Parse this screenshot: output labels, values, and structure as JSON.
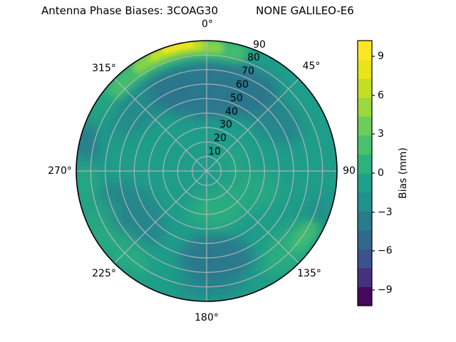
{
  "figure": {
    "title_left": "Antenna Phase Biases: 3COAG30",
    "title_right": "NONE GALILEO-E6",
    "background": "#ffffff"
  },
  "chart_data": {
    "type": "heatmap",
    "subtype": "polar_filled_contour",
    "title": "Antenna Phase Biases: 3COAG30        NONE GALILEO-E6",
    "azimuth_ticks": {
      "degrees": [
        0,
        45,
        90,
        135,
        180,
        225,
        270,
        315
      ],
      "labels": [
        "0°",
        "45°",
        "90",
        "135°",
        "180°",
        "225°",
        "270°",
        "315°"
      ]
    },
    "radial_ticks": {
      "values": [
        10,
        20,
        30,
        40,
        50,
        60,
        70,
        80,
        90
      ],
      "labels": [
        "10",
        "20",
        "30",
        "40",
        "50",
        "60",
        "70",
        "80",
        "90"
      ],
      "range": [
        0,
        90
      ],
      "label_azimuth_deg": 22.5
    },
    "grid": true,
    "colorbar": {
      "label": "Bias (mm)",
      "tick_values": [
        9,
        6,
        3,
        0,
        -3,
        -6,
        -9
      ],
      "tick_labels": [
        "9",
        "6",
        "3",
        "0",
        "−3",
        "−6",
        "−9"
      ],
      "value_range": [
        -10.2,
        10.2
      ],
      "n_bands": 14,
      "colormap": "viridis",
      "band_colors_bottom_to_top": [
        "#46085c",
        "#45327e",
        "#3b528b",
        "#31688e",
        "#287c8e",
        "#21918c",
        "#1fa088",
        "#2db27d",
        "#49c16e",
        "#6ccd5a",
        "#99d83e",
        "#c2df23",
        "#e8e419",
        "#fde725"
      ]
    },
    "palette": {
      "base_teal": "#1f9d8b",
      "negative_blue": "#2e718e",
      "positive_green": "#2fb27c",
      "arc_green": "#4ec36b",
      "arc_yellow_green": "#c8e020",
      "arc_yellow": "#f2e51e",
      "gridline": "#b9b9b9",
      "outline": "#000000"
    },
    "sampled_bias_mm": {
      "note": "values estimated from colormap",
      "azimuth_deg": [
        0,
        45,
        90,
        135,
        180,
        225,
        270,
        315
      ],
      "zenith_deg": [
        15,
        45,
        75
      ],
      "rows_by_zenith": [
        [
          1.0,
          1.0,
          1.5,
          2.0,
          2.5,
          1.5,
          1.0,
          1.0
        ],
        [
          -2.0,
          0.0,
          1.0,
          1.5,
          0.5,
          1.0,
          0.0,
          -0.5
        ],
        [
          5.0,
          -0.5,
          0.5,
          3.5,
          -2.0,
          3.0,
          1.5,
          2.5
        ]
      ]
    },
    "extrema": {
      "max_mm": 9.5,
      "max_at": {
        "azimuth_deg": 350,
        "zenith_deg": 88
      },
      "min_mm": -2.5,
      "min_at": {
        "azimuth_deg": 5,
        "zenith_deg": 55
      }
    }
  }
}
